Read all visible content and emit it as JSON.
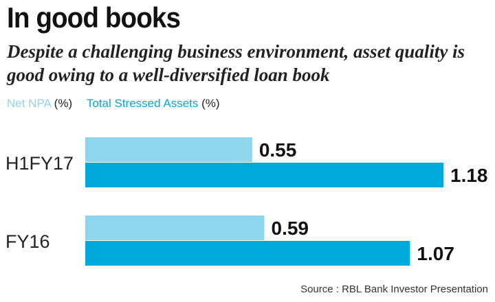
{
  "title": "In good books",
  "subtitle": "Despite a challenging business environment, asset quality is good owing to a well-diversified loan book",
  "source": "Source : RBL Bank Investor Presentation",
  "colors": {
    "net_npa": "#8fd5ee",
    "total_stressed": "#00a9dc",
    "text": "#222222"
  },
  "chart_data": {
    "type": "bar",
    "orientation": "horizontal",
    "categories": [
      "H1FY17",
      "FY16"
    ],
    "series": [
      {
        "name": "Net NPA",
        "unit": "(%)",
        "values": [
          0.55,
          0.59
        ]
      },
      {
        "name": "Total Stressed Assets",
        "unit": "(%)",
        "values": [
          1.18,
          1.07
        ]
      }
    ],
    "xlim": [
      0,
      1.2
    ],
    "grid": false,
    "legend": "top-left"
  }
}
